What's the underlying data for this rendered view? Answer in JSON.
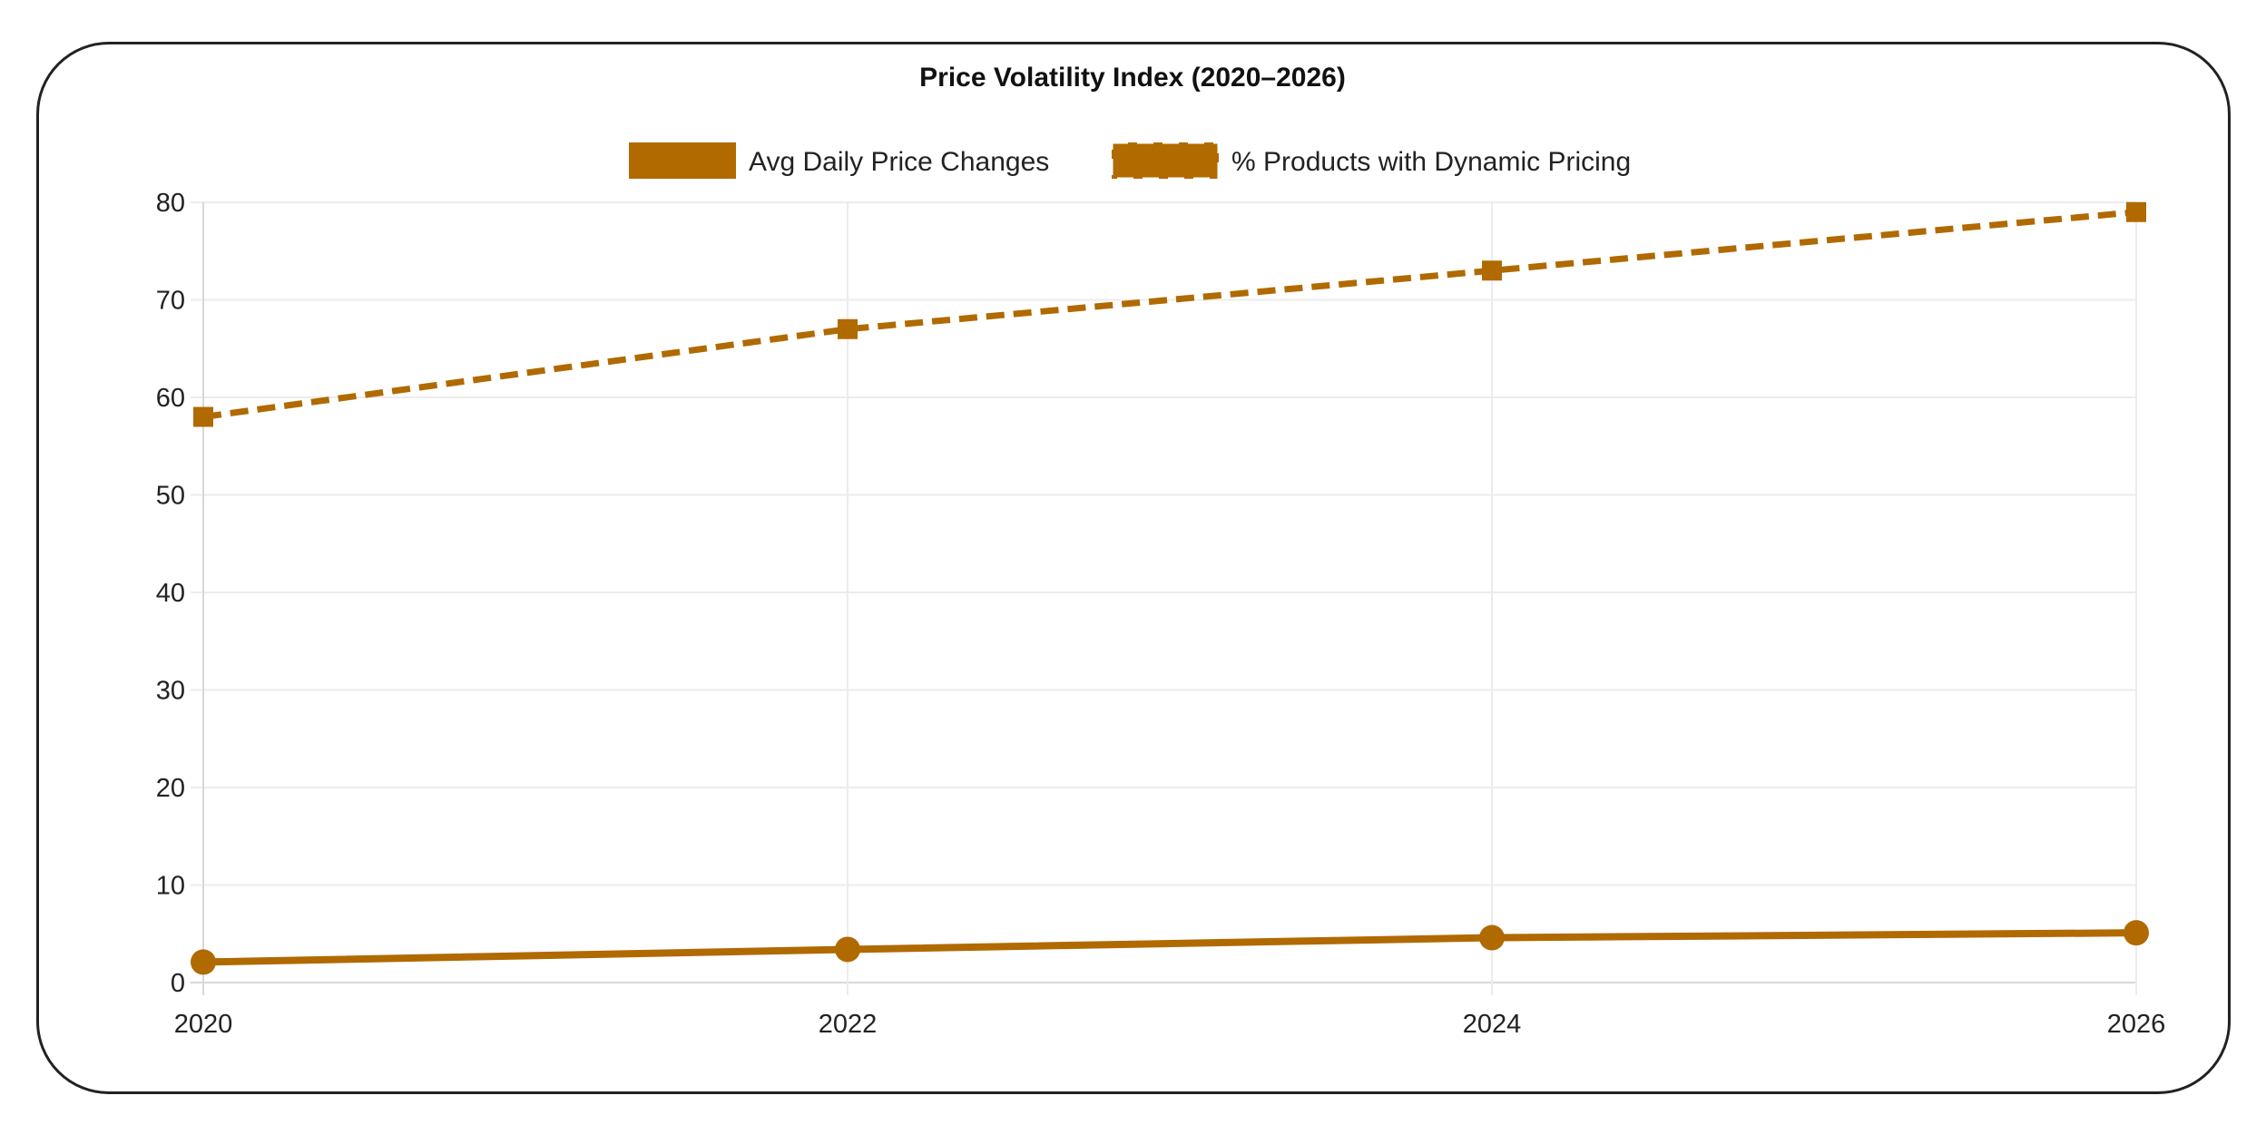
{
  "chart_data": {
    "type": "line",
    "title": "Price Volatility Index (2020–2026)",
    "xlabel": "",
    "ylabel": "",
    "x": [
      "2020",
      "2022",
      "2024",
      "2026"
    ],
    "ylim": [
      0,
      80
    ],
    "yticks": [
      "0",
      "10",
      "20",
      "30",
      "40",
      "50",
      "60",
      "70",
      "80"
    ],
    "grid": true,
    "legend_position": "top",
    "series": [
      {
        "name": "Avg Daily Price Changes",
        "values": [
          2.1,
          3.4,
          4.6,
          5.1
        ],
        "color": "#b06a00",
        "style": "solid",
        "marker": "circle"
      },
      {
        "name": "% Products with Dynamic Pricing",
        "values": [
          58,
          67,
          73,
          79
        ],
        "color": "#b06a00",
        "style": "dashed",
        "marker": "square"
      }
    ]
  }
}
